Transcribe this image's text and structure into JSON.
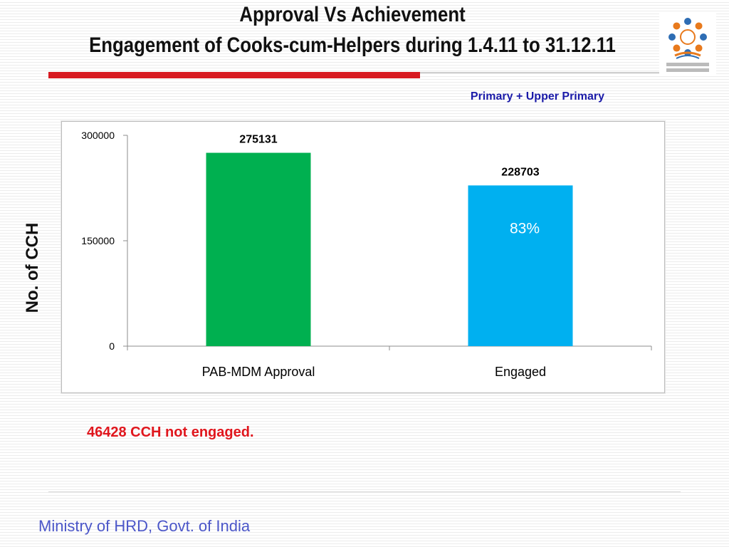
{
  "slide": {
    "title_line1": "Approval Vs Achievement",
    "title_line2": "Engagement  of Cooks-cum-Helpers  during 1.4.11 to 31.12.11",
    "series_label": "Primary + Upper Primary",
    "note": "46428 CCH not engaged.",
    "footer": "Ministry of HRD, Govt. of India",
    "logo_icon": "mid-day-meal-scheme-logo",
    "logo_caption": "मध्याह्न भोजन योजना / Mid Day Meal Scheme"
  },
  "colors": {
    "approval_bar": "#00b050",
    "engaged_bar": "#00b0f0",
    "title_rule": "#d71920",
    "note": "#e0161d",
    "series_label": "#1a1aa8",
    "footer": "#4b56c8",
    "percent_label": "#ffffff"
  },
  "chart_data": {
    "type": "bar",
    "categories": [
      "PAB-MDM Approval",
      "Engaged"
    ],
    "values": [
      275131,
      228703
    ],
    "data_labels": [
      "275131",
      "228703"
    ],
    "annotations": [
      {
        "category": "Engaged",
        "text": "83%"
      }
    ],
    "ylabel": "No. of CCH",
    "ylim": [
      0,
      300000
    ],
    "yticks": [
      0,
      150000,
      300000
    ],
    "ytick_labels": [
      "0",
      "150000",
      "300000"
    ],
    "grid": false,
    "legend": "none"
  }
}
